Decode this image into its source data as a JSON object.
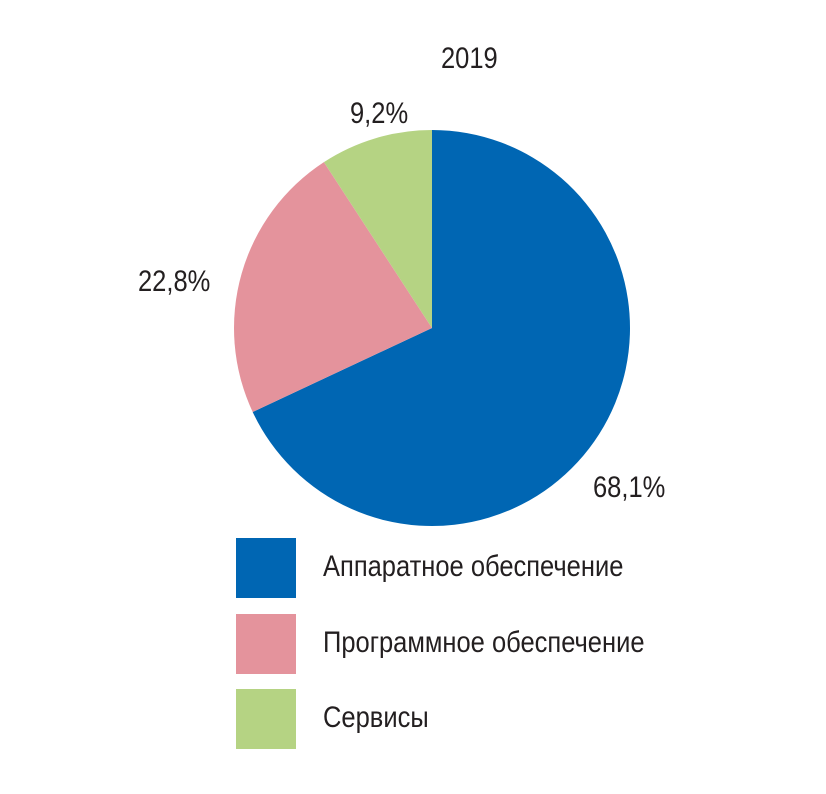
{
  "chart_data": {
    "type": "pie",
    "title": "2019",
    "start": "top",
    "direction": "clockwise",
    "slices": [
      {
        "name": "Аппаратное обеспечение",
        "value": 68.1,
        "label": "68,1%",
        "color": "#0066b3"
      },
      {
        "name": "Программное обеспечение",
        "value": 22.8,
        "label": "22,8%",
        "color": "#e4939c"
      },
      {
        "name": "Сервисы",
        "value": 9.2,
        "label": "9,2%",
        "color": "#b5d383"
      }
    ],
    "legend_position": "bottom"
  }
}
